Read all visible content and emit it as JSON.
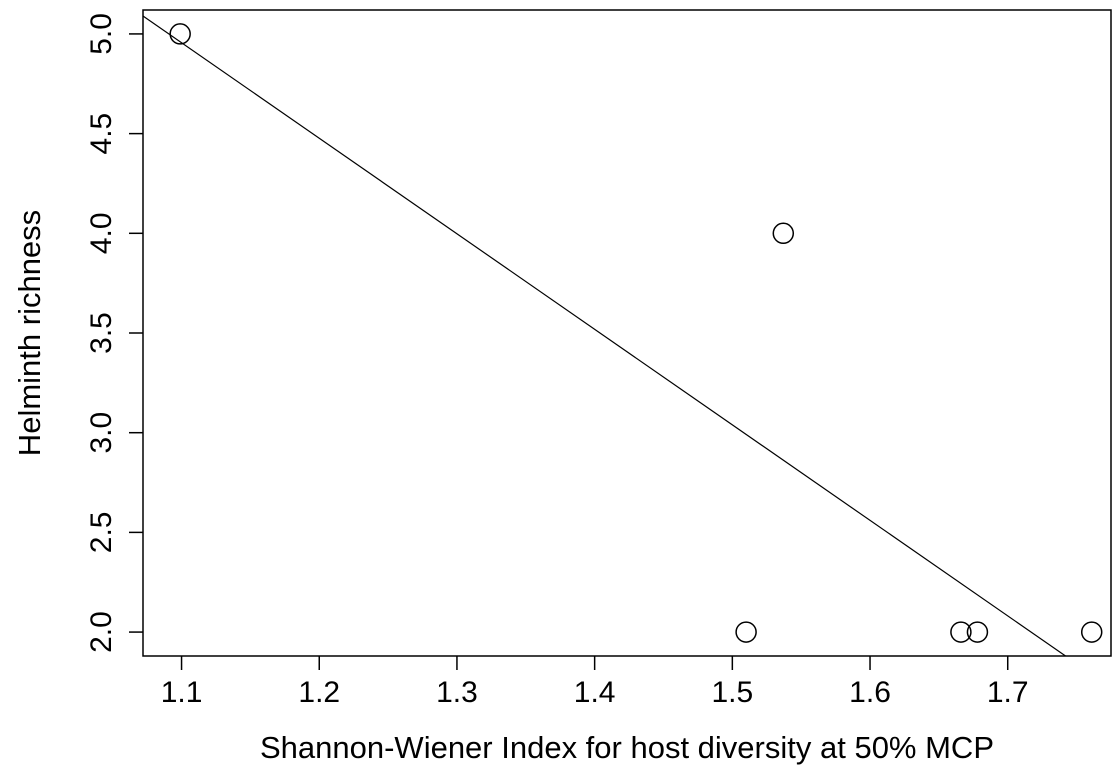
{
  "chart_data": {
    "type": "scatter",
    "title": "",
    "xlabel": "Shannon-Wiener Index for host diversity at 50% MCP",
    "ylabel": "Helminth richness",
    "xlim": [
      1.072,
      1.775
    ],
    "ylim": [
      1.88,
      5.12
    ],
    "xticks": [
      "1.1",
      "1.2",
      "1.3",
      "1.4",
      "1.5",
      "1.6",
      "1.7"
    ],
    "yticks": [
      "2.0",
      "2.5",
      "3.0",
      "3.5",
      "4.0",
      "4.5",
      "5.0"
    ],
    "grid": false,
    "legend": "none",
    "points": [
      {
        "x": 1.099,
        "y": 5.0
      },
      {
        "x": 1.537,
        "y": 4.0
      },
      {
        "x": 1.51,
        "y": 2.0
      },
      {
        "x": 1.666,
        "y": 2.0
      },
      {
        "x": 1.678,
        "y": 2.0
      },
      {
        "x": 1.761,
        "y": 2.0
      }
    ],
    "fit_line": {
      "x": [
        1.072,
        1.742
      ],
      "y": [
        5.09,
        1.88
      ]
    }
  }
}
